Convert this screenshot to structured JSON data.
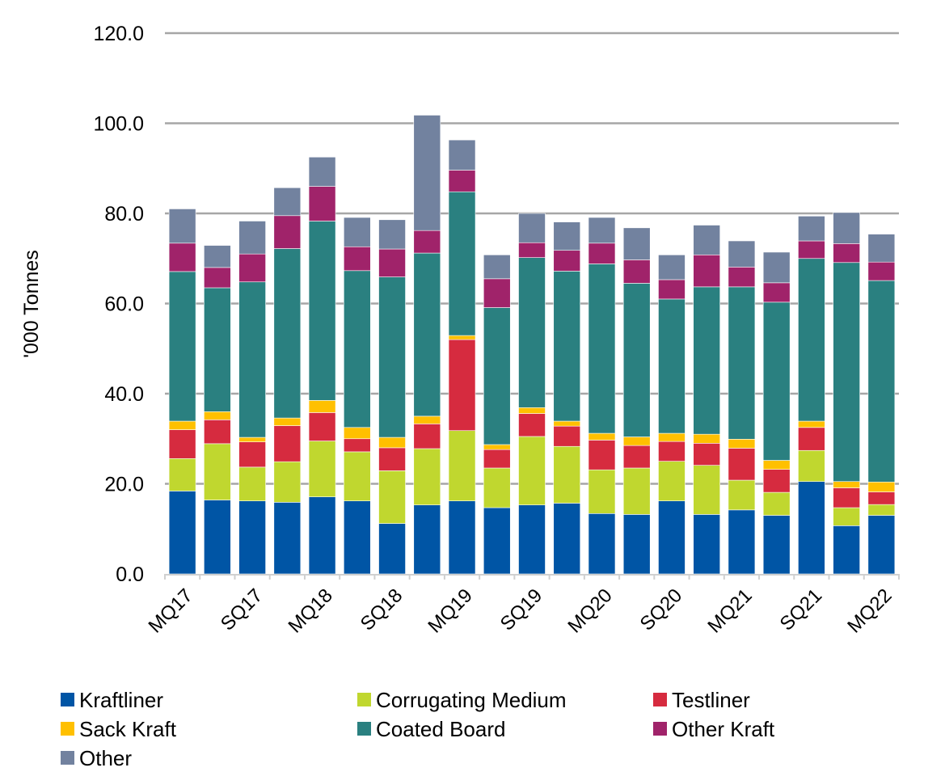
{
  "chart_data": {
    "type": "bar",
    "stacked": true,
    "title": "",
    "xlabel": "",
    "ylabel": "'000 Tonnes",
    "ylim": [
      0,
      120
    ],
    "yticks": [
      "0.0",
      "20.0",
      "40.0",
      "60.0",
      "80.0",
      "100.0",
      "120.0"
    ],
    "grid": true,
    "legend_position": "bottom",
    "categories": [
      "MQ17",
      "",
      "SQ17",
      "",
      "MQ18",
      "",
      "SQ18",
      "",
      "MQ19",
      "",
      "SQ19",
      "",
      "MQ20",
      "",
      "SQ20",
      "",
      "MQ21",
      "",
      "SQ21",
      "",
      "MQ22"
    ],
    "series": [
      {
        "name": "Kraftliner",
        "color": "#0055A5",
        "values": [
          18.4,
          16.4,
          16.2,
          15.9,
          17.1,
          16.2,
          11.2,
          15.3,
          16.2,
          14.7,
          15.3,
          15.7,
          13.4,
          13.2,
          16.2,
          13.2,
          14.2,
          13.0,
          20.5,
          10.7,
          13.0
        ]
      },
      {
        "name": "Corrugating Medium",
        "color": "#C0D72F",
        "values": [
          7.2,
          12.5,
          7.5,
          9.0,
          12.4,
          10.9,
          11.7,
          12.5,
          15.6,
          8.8,
          15.2,
          12.6,
          9.7,
          10.3,
          8.8,
          10.9,
          6.6,
          5.1,
          6.9,
          4.0,
          2.4
        ]
      },
      {
        "name": "Testliner",
        "color": "#D62B3F",
        "values": [
          6.4,
          5.3,
          5.6,
          8.0,
          6.3,
          2.9,
          5.1,
          5.5,
          20.2,
          4.1,
          5.1,
          4.5,
          6.6,
          5.0,
          4.4,
          4.9,
          7.1,
          5.1,
          5.1,
          4.4,
          2.8
        ]
      },
      {
        "name": "Sack Kraft",
        "color": "#FFC000",
        "values": [
          1.9,
          1.8,
          1.0,
          1.7,
          2.7,
          2.5,
          2.3,
          1.7,
          0.9,
          1.1,
          1.3,
          1.1,
          1.5,
          1.9,
          1.8,
          2.0,
          2.0,
          2.0,
          1.4,
          1.4,
          2.2
        ]
      },
      {
        "name": "Coated Board",
        "color": "#2A8080",
        "values": [
          33.2,
          27.5,
          34.5,
          37.6,
          39.8,
          34.8,
          35.6,
          36.2,
          31.9,
          30.4,
          33.3,
          33.3,
          37.6,
          34.1,
          29.8,
          32.7,
          33.8,
          35.1,
          36.1,
          48.6,
          44.7
        ]
      },
      {
        "name": "Other Kraft",
        "color": "#A0236A",
        "values": [
          6.3,
          4.5,
          6.2,
          7.3,
          7.7,
          5.3,
          6.2,
          5.0,
          4.8,
          6.4,
          3.3,
          4.6,
          4.6,
          5.2,
          4.3,
          7.1,
          4.4,
          4.3,
          3.9,
          4.2,
          4.1
        ]
      },
      {
        "name": "Other",
        "color": "#72829F",
        "values": [
          7.6,
          4.9,
          7.3,
          6.2,
          6.5,
          6.5,
          6.5,
          25.6,
          6.7,
          5.3,
          6.5,
          6.3,
          5.7,
          7.1,
          5.5,
          6.6,
          5.8,
          6.8,
          5.5,
          6.9,
          6.2
        ]
      }
    ]
  }
}
